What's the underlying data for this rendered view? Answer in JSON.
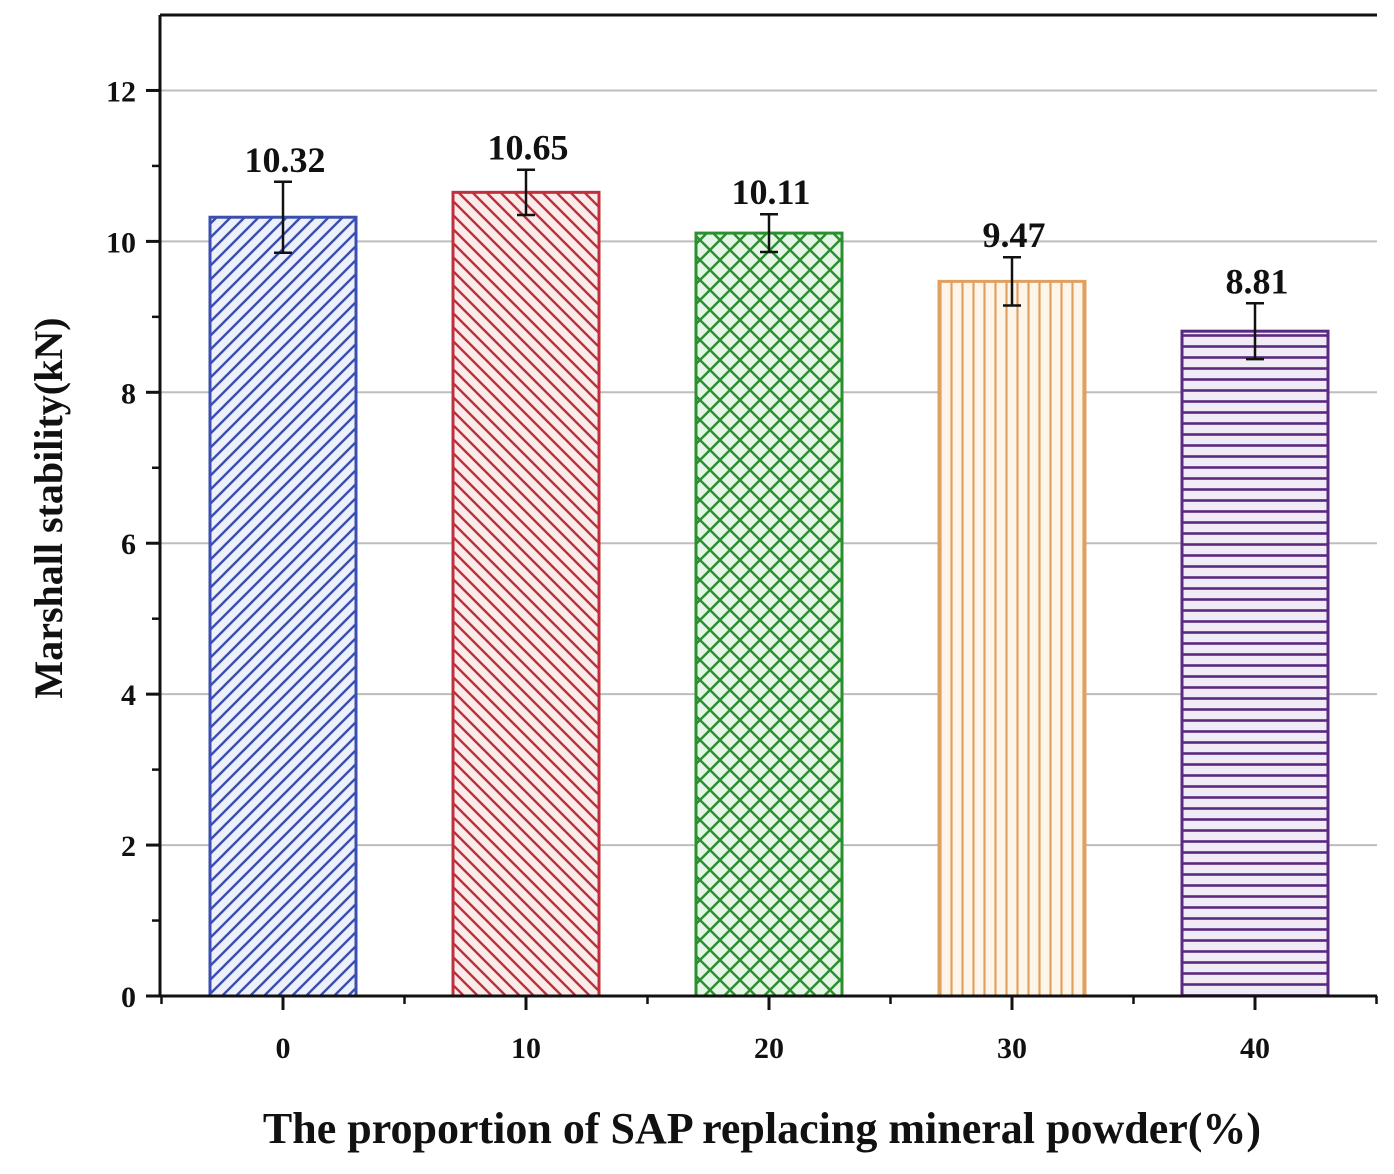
{
  "chart_data": {
    "type": "bar",
    "xlabel": "The proportion of SAP replacing mineral powder(%)",
    "ylabel": "Marshall stability(kN)",
    "ylim": [
      0,
      13
    ],
    "yticks": [
      0,
      2,
      4,
      6,
      8,
      10,
      12
    ],
    "grid": true,
    "categories": [
      "0",
      "10",
      "20",
      "30",
      "40"
    ],
    "values": [
      10.32,
      10.65,
      10.11,
      9.47,
      8.81
    ],
    "value_labels": [
      "10.32",
      "10.65",
      "10.11",
      "9.47",
      "8.81"
    ],
    "errors": [
      0.47,
      0.3,
      0.25,
      0.32,
      0.37
    ],
    "bar_styles": [
      {
        "color": "#3a4fb0",
        "fill": "#eef0fa",
        "pattern": "diagonal-up"
      },
      {
        "color": "#c0303a",
        "fill": "#fbecec",
        "pattern": "diagonal-down"
      },
      {
        "color": "#2a8f2e",
        "fill": "#e6f6e6",
        "pattern": "crosshatch"
      },
      {
        "color": "#e0a060",
        "fill": "#fdf4ea",
        "pattern": "vertical"
      },
      {
        "color": "#5a2a80",
        "fill": "#f1ebf6",
        "pattern": "horizontal"
      }
    ]
  }
}
